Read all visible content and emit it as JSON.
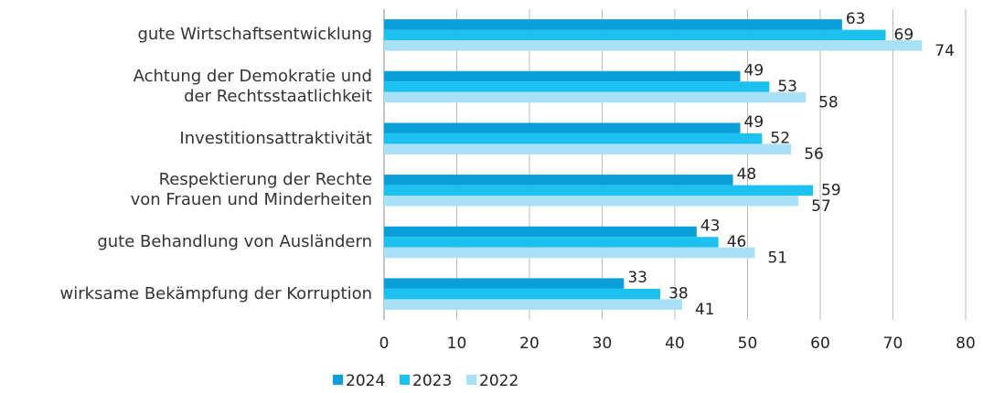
{
  "chart_data": {
    "type": "bar",
    "orientation": "horizontal",
    "categories": [
      "gute Wirtschaftsentwicklung",
      "Achtung der Demokratie und\nder Rechtsstaatlichkeit",
      "Investitionsattraktivität",
      "Respektierung der Rechte\nvon Frauen und Minderheiten",
      "gute Behandlung von Ausländern",
      "wirksame Bekämpfung der Korruption"
    ],
    "series": [
      {
        "name": "2024",
        "color": "#0b9fd9",
        "values": [
          63,
          49,
          49,
          48,
          43,
          33
        ]
      },
      {
        "name": "2023",
        "color": "#1dc1f0",
        "values": [
          69,
          53,
          52,
          59,
          46,
          38
        ]
      },
      {
        "name": "2022",
        "color": "#a8e0f6",
        "values": [
          74,
          58,
          56,
          57,
          51,
          41
        ]
      }
    ],
    "xlim": [
      0,
      80
    ],
    "xticks": [
      0,
      10,
      20,
      30,
      40,
      50,
      60,
      70,
      80
    ],
    "grid": true,
    "legend": "bottom"
  }
}
